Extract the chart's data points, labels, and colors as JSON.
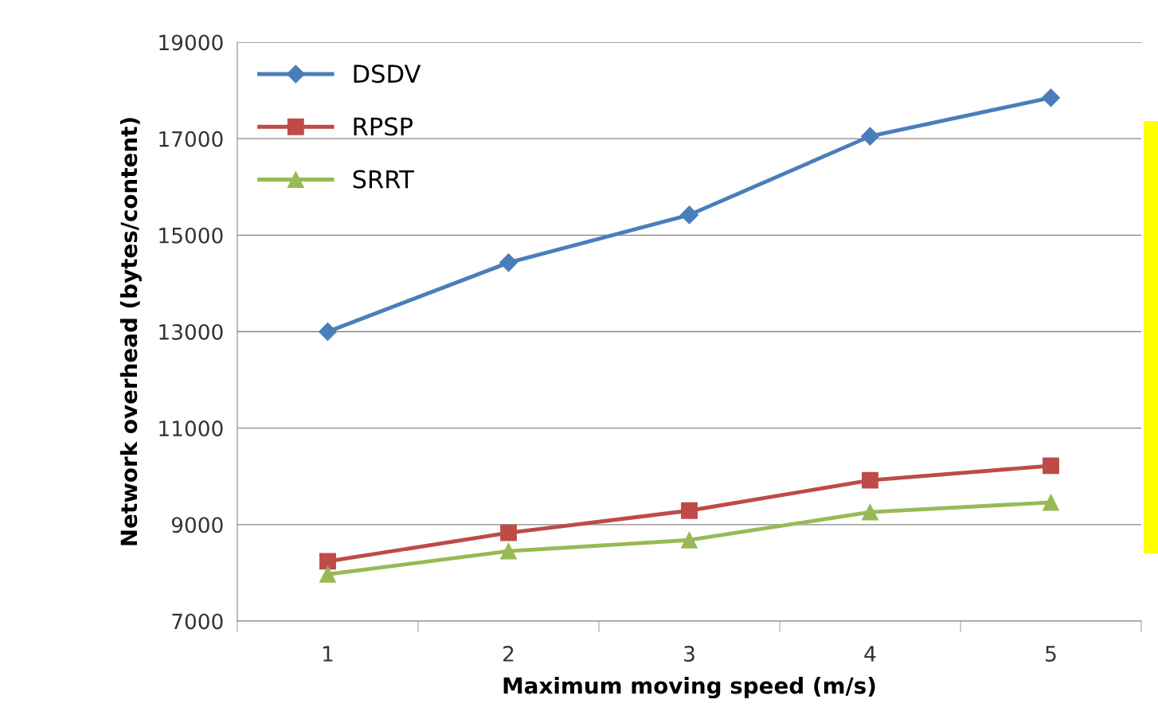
{
  "chart_data": {
    "type": "line",
    "xlabel": "Maximum moving speed (m/s)",
    "ylabel": "Network overhead (bytes/content)",
    "categories": [
      "1",
      "2",
      "3",
      "4",
      "5"
    ],
    "series": [
      {
        "name": "DSDV",
        "color": "#4a7ebb",
        "marker": "diamond",
        "values": [
          13000,
          14430,
          15420,
          17050,
          17850
        ]
      },
      {
        "name": "RPSP",
        "color": "#be4b48",
        "marker": "square",
        "values": [
          8240,
          8830,
          9290,
          9920,
          10220
        ]
      },
      {
        "name": "SRRT",
        "color": "#98b954",
        "marker": "triangle",
        "values": [
          7970,
          8450,
          8680,
          9260,
          9460
        ]
      }
    ],
    "ylim": [
      7000,
      19000
    ],
    "yticks": [
      7000,
      9000,
      11000,
      13000,
      15000,
      17000,
      19000
    ],
    "grid": "y",
    "legend": "top left",
    "line_style": "solid"
  }
}
